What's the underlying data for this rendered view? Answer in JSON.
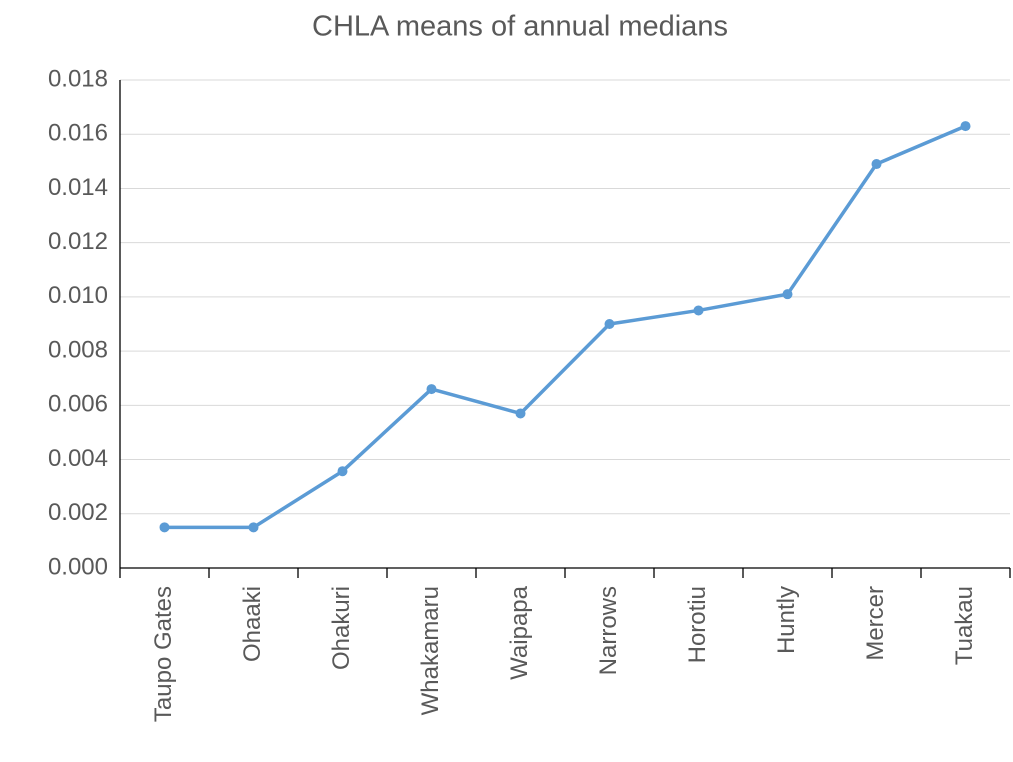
{
  "chart_data": {
    "type": "line",
    "title": "CHLA means of annual medians",
    "categories": [
      "Taupo Gates",
      "Ohaaki",
      "Ohakuri",
      "Whakamaru",
      "Waipapa",
      "Narrows",
      "Horotiu",
      "Huntly",
      "Mercer",
      "Tuakau"
    ],
    "series": [
      {
        "name": "CHLA",
        "color": "#5b9bd5",
        "values": [
          0.0015,
          0.0015,
          0.00357,
          0.0066,
          0.0057,
          0.009,
          0.0095,
          0.0101,
          0.0149,
          0.0163
        ]
      }
    ],
    "ylim": [
      0,
      0.018
    ],
    "yticks": [
      {
        "value": 0,
        "label": "0.000"
      },
      {
        "value": 0.002,
        "label": "0.002"
      },
      {
        "value": 0.004,
        "label": "0.004"
      },
      {
        "value": 0.006,
        "label": "0.006"
      },
      {
        "value": 0.008,
        "label": "0.008"
      },
      {
        "value": 0.01,
        "label": "0.010"
      },
      {
        "value": 0.012,
        "label": "0.012"
      },
      {
        "value": 0.014,
        "label": "0.014"
      },
      {
        "value": 0.016,
        "label": "0.016"
      },
      {
        "value": 0.018,
        "label": "0.018"
      }
    ],
    "grid": true
  }
}
